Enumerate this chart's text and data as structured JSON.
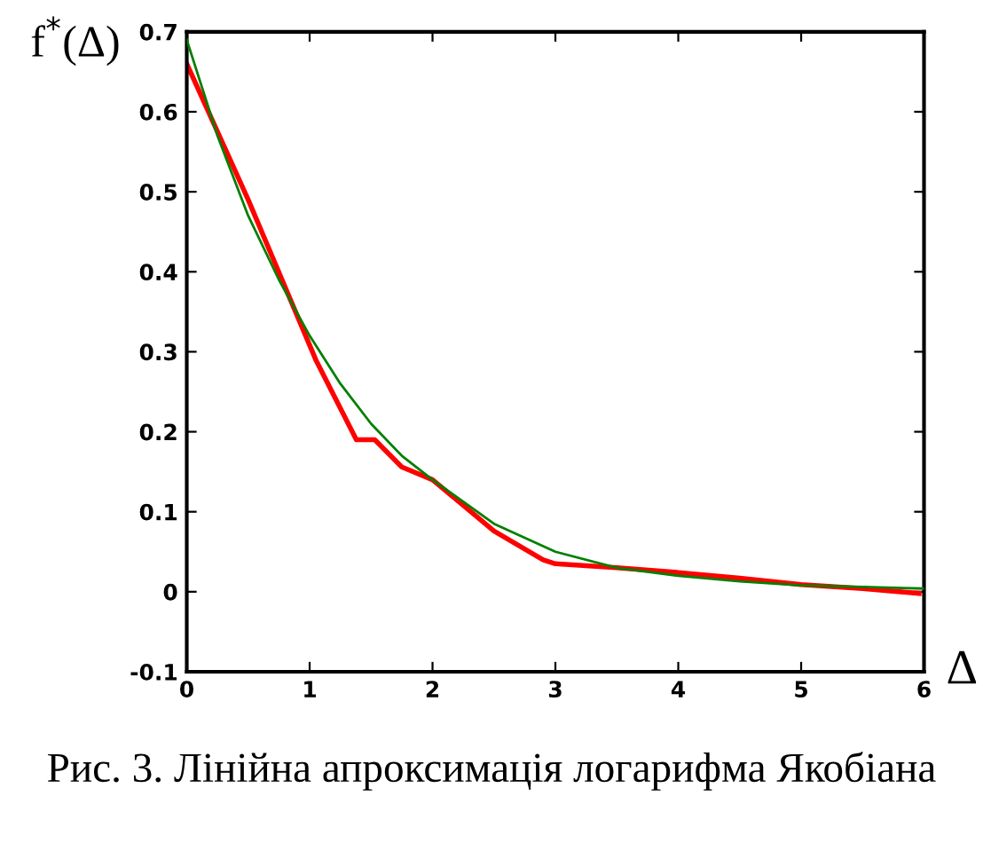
{
  "chart_data": {
    "type": "line",
    "xlabel": "Δ",
    "ylabel": "f$^{*}$(Δ)",
    "annotations": [
      "Рис. 3. Лінійна апроксимація логарифма Якобіана"
    ],
    "xlim": [
      0,
      6
    ],
    "xticks": [
      0,
      1,
      2,
      3,
      4,
      5,
      6
    ],
    "ylim": [
      -0.1,
      0.7
    ],
    "yticks": [
      -0.1,
      0,
      0.1,
      0.2,
      0.3,
      0.4,
      0.5,
      0.6,
      0.7
    ],
    "grid": false,
    "legend": false,
    "series": [
      {
        "color": "#008000",
        "x": [
          0,
          0.25,
          0.5,
          0.75,
          1,
          1.25,
          1.5,
          1.75,
          2,
          2.5,
          3,
          3.5,
          4,
          4.5,
          5,
          5.5,
          6
        ],
        "values": [
          0.69,
          0.57,
          0.47,
          0.39,
          0.32,
          0.26,
          0.21,
          0.17,
          0.14,
          0.085,
          0.05,
          0.03,
          0.02,
          0.013,
          0.008,
          0.006,
          0.004
        ]
      },
      {
        "color": "#ff0000",
        "x": [
          0,
          0.5,
          1.05,
          1.38,
          1.53,
          1.75,
          2,
          2.5,
          2.9,
          3.0,
          3.5,
          4,
          4.5,
          5,
          5.5,
          5.96
        ],
        "values": [
          0.66,
          0.49,
          0.29,
          0.19,
          0.19,
          0.156,
          0.14,
          0.076,
          0.04,
          0.035,
          0.03,
          0.024,
          0.017,
          0.009,
          0.004,
          -0.002
        ]
      }
    ]
  }
}
